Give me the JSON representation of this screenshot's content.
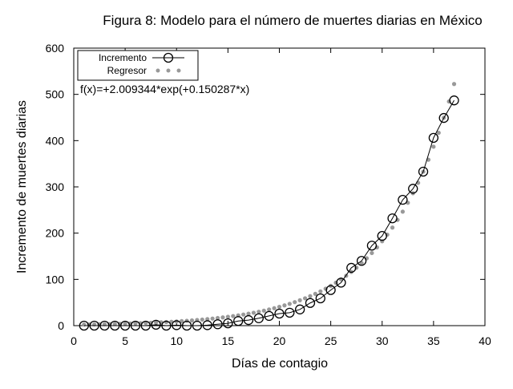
{
  "chart_data": {
    "type": "scatter",
    "title": "Figura 8: Modelo para el número de muertes diarias en México",
    "xlabel": "Días de contagio",
    "ylabel": "Incremento de muertes diarias",
    "xlim": [
      0,
      40
    ],
    "ylim": [
      0,
      600
    ],
    "xticks": [
      "0",
      "5",
      "10",
      "15",
      "20",
      "25",
      "30",
      "35",
      "40"
    ],
    "yticks": [
      "0",
      "100",
      "200",
      "300",
      "400",
      "500",
      "600"
    ],
    "legend_position": "top-left",
    "annotation": "f(x)=+2.009344*exp(+0.150287*x)",
    "series": [
      {
        "name": "Incremento",
        "style": "line-circles",
        "color": "#000000",
        "x": [
          1,
          2,
          3,
          4,
          5,
          6,
          7,
          8,
          9,
          10,
          11,
          12,
          13,
          14,
          15,
          16,
          17,
          18,
          19,
          20,
          21,
          22,
          23,
          24,
          25,
          26,
          27,
          28,
          29,
          30,
          31,
          32,
          33,
          34,
          35,
          36,
          37
        ],
        "y": [
          0,
          0,
          0,
          0,
          0,
          0,
          0,
          2,
          0,
          1,
          0,
          0,
          1,
          3,
          5,
          10,
          12,
          16,
          21,
          26,
          28,
          35,
          49,
          59,
          77,
          93,
          125,
          140,
          173,
          194,
          232,
          272,
          296,
          333,
          406,
          449,
          487
        ]
      },
      {
        "name": "Regresor",
        "style": "points",
        "color": "#999999",
        "model": {
          "a": 2.009344,
          "b": 0.150287
        },
        "x_start": 1,
        "x_end": 37,
        "x_step": 0.5
      }
    ]
  }
}
